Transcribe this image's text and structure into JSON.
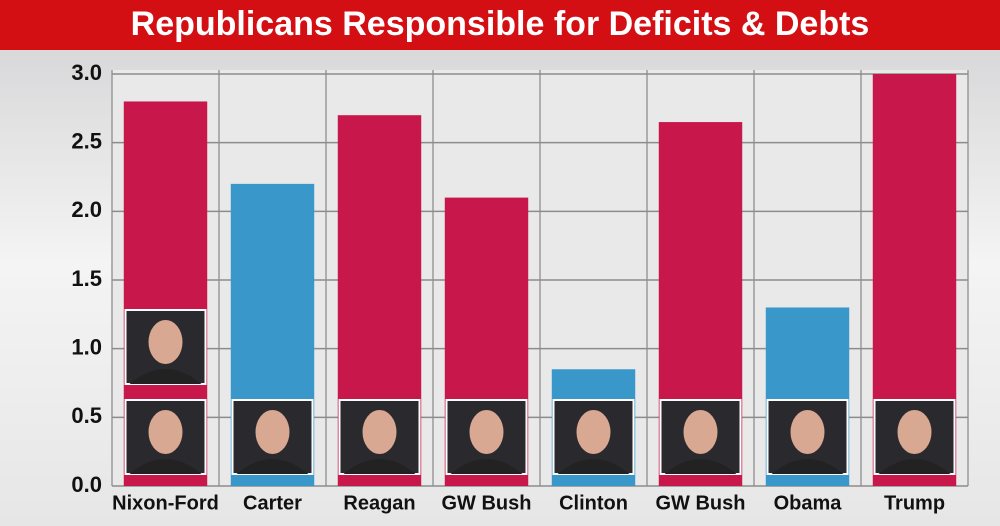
{
  "chart_data": {
    "type": "bar",
    "title": "Republicans Responsible for Deficits & Debts",
    "categories": [
      "Nixon-Ford",
      "Carter",
      "Reagan",
      "GW Bush",
      "Clinton",
      "GW Bush",
      "Obama",
      "Trump"
    ],
    "values": [
      2.8,
      2.2,
      2.7,
      2.1,
      0.85,
      2.65,
      1.3,
      3.0
    ],
    "colors": [
      "#c8174a",
      "#3a97c9",
      "#c8174a",
      "#c8174a",
      "#3a97c9",
      "#c8174a",
      "#3a97c9",
      "#c8174a"
    ],
    "ylim": [
      0,
      3.0
    ],
    "yticks": [
      {
        "value": 0,
        "label": "0.0"
      },
      0.5,
      {
        "value": 1,
        "label": "1.0"
      },
      1.5,
      {
        "value": 2,
        "label": "2.0"
      },
      2.5,
      {
        "value": 3,
        "label": "3.0"
      }
    ],
    "grid": true
  }
}
